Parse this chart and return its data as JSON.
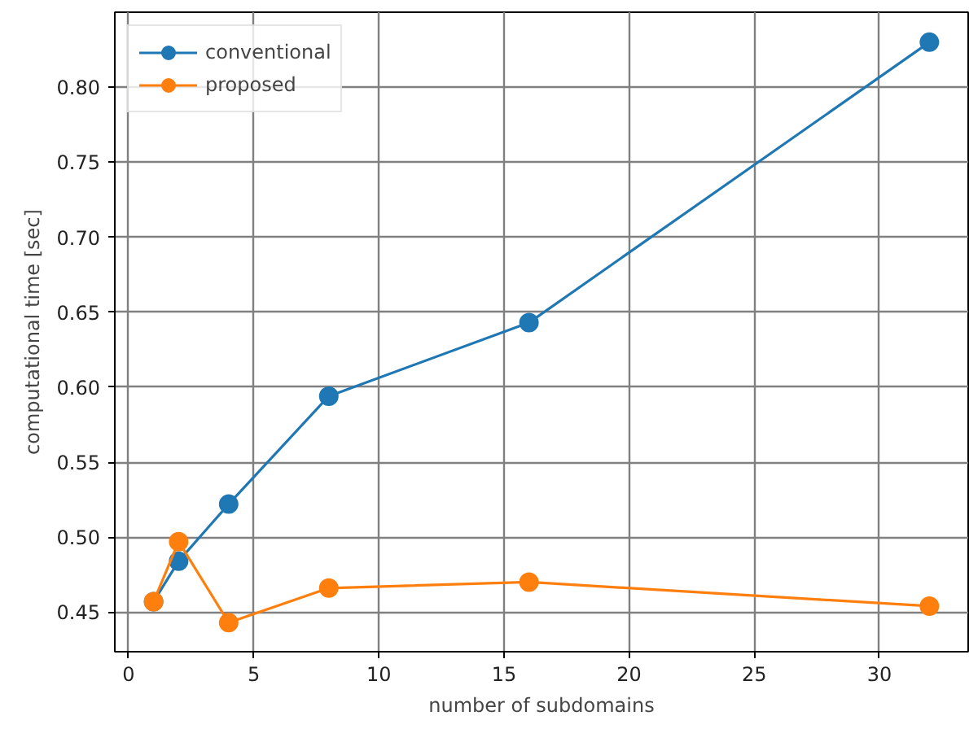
{
  "chart_data": {
    "type": "line",
    "xlabel": "number of subdomains",
    "ylabel": "computational time [sec]",
    "x": [
      1,
      2,
      4,
      8,
      16,
      32
    ],
    "series": [
      {
        "name": "conventional",
        "color": "#1f77b4",
        "values": [
          0.457,
          0.484,
          0.522,
          0.594,
          0.643,
          0.83
        ]
      },
      {
        "name": "proposed",
        "color": "#ff7f0e",
        "values": [
          0.457,
          0.497,
          0.443,
          0.466,
          0.47,
          0.454
        ]
      }
    ],
    "xlim": [
      -0.55,
      33.55
    ],
    "ylim": [
      0.4236,
      0.85
    ],
    "xticks": [
      0,
      5,
      10,
      15,
      20,
      25,
      30
    ],
    "yticks": [
      {
        "value": 0.45,
        "label": "0.45"
      },
      {
        "value": 0.5,
        "label": "0.50"
      },
      {
        "value": 0.55,
        "label": "0.55"
      },
      {
        "value": 0.6,
        "label": "0.60"
      },
      {
        "value": 0.65,
        "label": "0.65"
      },
      {
        "value": 0.7,
        "label": "0.70"
      },
      {
        "value": 0.75,
        "label": "0.75"
      },
      {
        "value": 0.8,
        "label": "0.80"
      }
    ],
    "grid": true,
    "legend": "top left",
    "marker": "circle",
    "line_style": "solid"
  }
}
